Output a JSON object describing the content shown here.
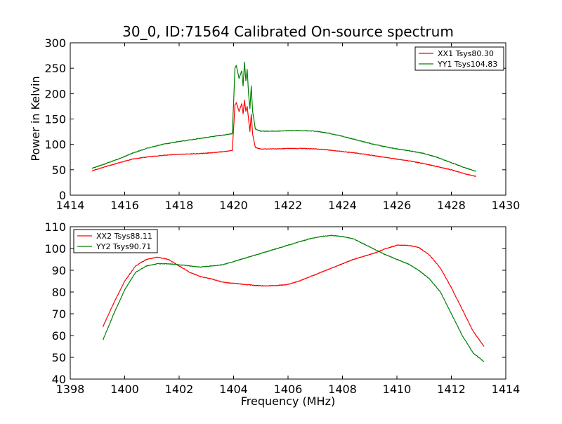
{
  "figure": {
    "title": "30_0, ID:71564 Calibrated On-source spectrum",
    "xlabel": "Frequency (MHz)",
    "ylabel": "Power in Kelvin"
  },
  "chart_data": [
    {
      "type": "line",
      "ylabel": "Power in Kelvin",
      "xlim": [
        1414,
        1430
      ],
      "ylim": [
        0,
        300
      ],
      "x_ticks": [
        1414,
        1416,
        1418,
        1420,
        1422,
        1424,
        1426,
        1428,
        1430
      ],
      "y_ticks": [
        0,
        50,
        100,
        150,
        200,
        250,
        300
      ],
      "legend_position": "top-right",
      "series": [
        {
          "name": "XX1 Tsys80.30",
          "color": "#ff0000",
          "x": [
            1414.8,
            1415.3,
            1415.8,
            1416.3,
            1416.8,
            1417.3,
            1417.8,
            1418.3,
            1418.8,
            1419.3,
            1419.7,
            1419.95,
            1420.0,
            1420.05,
            1420.1,
            1420.2,
            1420.3,
            1420.35,
            1420.4,
            1420.45,
            1420.5,
            1420.55,
            1420.6,
            1420.65,
            1420.7,
            1420.8,
            1421.0,
            1421.5,
            1422.0,
            1422.5,
            1423.0,
            1423.5,
            1424.0,
            1424.5,
            1425.0,
            1425.5,
            1426.0,
            1426.5,
            1427.0,
            1427.5,
            1428.0,
            1428.5,
            1428.9
          ],
          "y": [
            48,
            56,
            64,
            71,
            75,
            78,
            80,
            81,
            82,
            84,
            86,
            88,
            130,
            178,
            182,
            165,
            180,
            160,
            187,
            165,
            175,
            150,
            125,
            160,
            120,
            94,
            91,
            91,
            92,
            92,
            91,
            89,
            86,
            83,
            79,
            75,
            71,
            67,
            62,
            56,
            50,
            42,
            37
          ]
        },
        {
          "name": "YY1 Tsys104.83",
          "color": "#008000",
          "x": [
            1414.8,
            1415.3,
            1415.8,
            1416.3,
            1416.8,
            1417.3,
            1417.8,
            1418.3,
            1418.8,
            1419.3,
            1419.7,
            1419.95,
            1420.0,
            1420.05,
            1420.1,
            1420.2,
            1420.3,
            1420.35,
            1420.4,
            1420.45,
            1420.5,
            1420.55,
            1420.6,
            1420.65,
            1420.7,
            1420.8,
            1421.0,
            1421.5,
            1422.0,
            1422.5,
            1423.0,
            1423.5,
            1424.0,
            1424.5,
            1425.0,
            1425.5,
            1426.0,
            1426.5,
            1427.0,
            1427.5,
            1428.0,
            1428.5,
            1428.9
          ],
          "y": [
            53,
            62,
            72,
            83,
            92,
            99,
            104,
            108,
            112,
            116,
            119,
            121,
            180,
            250,
            255,
            230,
            245,
            215,
            262,
            225,
            248,
            200,
            170,
            215,
            165,
            130,
            126,
            126,
            127,
            127,
            126,
            122,
            116,
            109,
            102,
            96,
            91,
            87,
            82,
            74,
            64,
            54,
            47
          ]
        }
      ]
    },
    {
      "type": "line",
      "xlabel": "Frequency (MHz)",
      "xlim": [
        1398,
        1414
      ],
      "ylim": [
        40,
        110
      ],
      "x_ticks": [
        1398,
        1400,
        1402,
        1404,
        1406,
        1408,
        1410,
        1412,
        1414
      ],
      "y_ticks": [
        40,
        50,
        60,
        70,
        80,
        90,
        100,
        110
      ],
      "legend_position": "top-left",
      "series": [
        {
          "name": "XX2 Tsys88.11",
          "color": "#ff0000",
          "x": [
            1399.2,
            1399.6,
            1400.0,
            1400.4,
            1400.8,
            1401.2,
            1401.6,
            1402.0,
            1402.4,
            1402.8,
            1403.2,
            1403.6,
            1404.0,
            1404.4,
            1404.8,
            1405.2,
            1405.6,
            1406.0,
            1406.4,
            1406.8,
            1407.2,
            1407.6,
            1408.0,
            1408.4,
            1408.8,
            1409.2,
            1409.6,
            1410.0,
            1410.4,
            1410.8,
            1411.2,
            1411.6,
            1412.0,
            1412.4,
            1412.8,
            1413.2
          ],
          "y": [
            64,
            75,
            85,
            92,
            95,
            96,
            95,
            92,
            89,
            87,
            86,
            84.5,
            84,
            83.5,
            83,
            82.8,
            83,
            83.5,
            85,
            87,
            89,
            91,
            93,
            95,
            96.5,
            98,
            100,
            101.5,
            101.5,
            100.5,
            97,
            91,
            82,
            72,
            62,
            55
          ]
        },
        {
          "name": "YY2 Tsys90.71",
          "color": "#008000",
          "x": [
            1399.2,
            1399.6,
            1400.0,
            1400.4,
            1400.8,
            1401.2,
            1401.6,
            1402.0,
            1402.4,
            1402.8,
            1403.2,
            1403.6,
            1404.0,
            1404.4,
            1404.8,
            1405.2,
            1405.6,
            1406.0,
            1406.4,
            1406.8,
            1407.2,
            1407.6,
            1408.0,
            1408.4,
            1408.8,
            1409.2,
            1409.6,
            1410.0,
            1410.4,
            1410.8,
            1411.2,
            1411.6,
            1412.0,
            1412.4,
            1412.8,
            1413.2
          ],
          "y": [
            58,
            70,
            81,
            89,
            92,
            93,
            93,
            92.5,
            92,
            91.5,
            92,
            92.5,
            94,
            95.5,
            97,
            98.5,
            100,
            101.5,
            103,
            104.5,
            105.5,
            106,
            105.5,
            104.5,
            102,
            99.5,
            97,
            95,
            93,
            90,
            86,
            80,
            70,
            60,
            52,
            48
          ]
        }
      ]
    }
  ]
}
